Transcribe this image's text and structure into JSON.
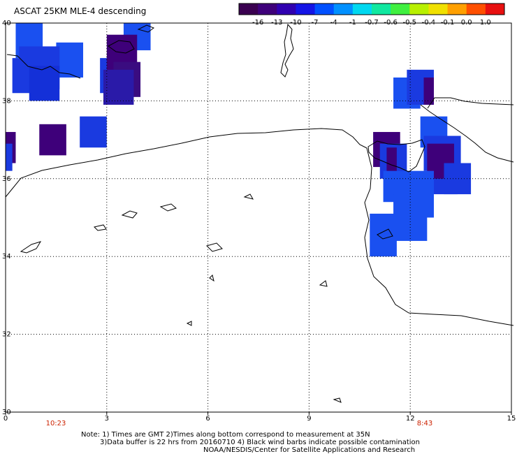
{
  "title": "ASCAT 25KM MLE-4 descending",
  "colorbar": {
    "labels": [
      "-16",
      "-13",
      "-10",
      "-7",
      "-4",
      "-1",
      "-0.7",
      "-0.6",
      "-0.5",
      "-0.4",
      "-0.1",
      "0.0",
      "1.0"
    ],
    "colors": [
      "#3a0050",
      "#3e007a",
      "#3000b0",
      "#1414e6",
      "#0050ff",
      "#0090ff",
      "#00d8f0",
      "#10e8a0",
      "#40f040",
      "#b8f000",
      "#f0e000",
      "#ffa000",
      "#ff5000",
      "#e81010"
    ]
  },
  "axes": {
    "lon_ticks": [
      "0",
      "3",
      "6",
      "9",
      "12",
      "15"
    ],
    "lat_ticks": [
      "40",
      "38",
      "36",
      "34",
      "32",
      "30"
    ],
    "lon_range": [
      0,
      15
    ],
    "lat_range": [
      30,
      40
    ]
  },
  "times": [
    {
      "label": "10:23",
      "color": "#cc2200"
    },
    {
      "label": "8:43",
      "color": "#cc2200"
    }
  ],
  "notes": [
    "Note: 1) Times are GMT 2)Times along bottom correspond to measurement at 35N",
    "3)Data buffer is 22 hrs from 20160710 4) Black wind barbs indicate possible contamination",
    "NOAA/NESDIS/Center for Satellite Applications and Research"
  ],
  "data_cells": [
    {
      "lon1": 0.3,
      "lat1": 39.1,
      "lon2": 1.1,
      "lat2": 40.0,
      "color": "#1a50f0"
    },
    {
      "lon1": 1.5,
      "lat1": 38.6,
      "lon2": 2.3,
      "lat2": 39.5,
      "color": "#1a50f0"
    },
    {
      "lon1": 0.4,
      "lat1": 38.3,
      "lon2": 1.6,
      "lat2": 39.4,
      "color": "#1a3ae0"
    },
    {
      "lon1": 0.2,
      "lat1": 38.2,
      "lon2": 1.3,
      "lat2": 39.1,
      "color": "#1a3ae0"
    },
    {
      "lon1": 0.7,
      "lat1": 38.0,
      "lon2": 1.6,
      "lat2": 38.9,
      "color": "#1430d8"
    },
    {
      "lon1": 3.5,
      "lat1": 39.3,
      "lon2": 4.3,
      "lat2": 40.0,
      "color": "#1a50f0"
    },
    {
      "lon1": 2.8,
      "lat1": 38.2,
      "lon2": 3.7,
      "lat2": 39.1,
      "color": "#1a3ae0"
    },
    {
      "lon1": 3.0,
      "lat1": 38.6,
      "lon2": 3.9,
      "lat2": 39.7,
      "color": "#3e007a"
    },
    {
      "lon1": 3.2,
      "lat1": 38.1,
      "lon2": 4.0,
      "lat2": 39.0,
      "color": "#3a0c80"
    },
    {
      "lon1": 2.9,
      "lat1": 37.9,
      "lon2": 3.8,
      "lat2": 38.8,
      "color": "#2a1aa8"
    },
    {
      "lon1": 0.0,
      "lat1": 36.4,
      "lon2": 0.3,
      "lat2": 37.2,
      "color": "#3e007a"
    },
    {
      "lon1": 0.0,
      "lat1": 36.2,
      "lon2": 0.2,
      "lat2": 36.9,
      "color": "#1a3ae0"
    },
    {
      "lon1": 1.0,
      "lat1": 36.6,
      "lon2": 1.8,
      "lat2": 37.4,
      "color": "#3e007a"
    },
    {
      "lon1": 2.2,
      "lat1": 36.8,
      "lon2": 3.0,
      "lat2": 37.6,
      "color": "#1a3ae0"
    },
    {
      "lon1": 11.5,
      "lat1": 37.8,
      "lon2": 12.3,
      "lat2": 38.6,
      "color": "#1a50f0"
    },
    {
      "lon1": 11.9,
      "lat1": 37.9,
      "lon2": 12.7,
      "lat2": 38.8,
      "color": "#1a3ae0"
    },
    {
      "lon1": 12.4,
      "lat1": 37.9,
      "lon2": 12.7,
      "lat2": 38.6,
      "color": "#3e007a"
    },
    {
      "lon1": 12.3,
      "lat1": 36.8,
      "lon2": 13.1,
      "lat2": 37.6,
      "color": "#1a50f0"
    },
    {
      "lon1": 12.4,
      "lat1": 36.2,
      "lon2": 13.5,
      "lat2": 37.1,
      "color": "#1a3ae0"
    },
    {
      "lon1": 12.6,
      "lat1": 35.6,
      "lon2": 13.4,
      "lat2": 36.6,
      "color": "#1a3ae0"
    },
    {
      "lon1": 12.5,
      "lat1": 36.0,
      "lon2": 13.3,
      "lat2": 36.9,
      "color": "#3e007a"
    },
    {
      "lon1": 13.0,
      "lat1": 35.6,
      "lon2": 13.8,
      "lat2": 36.4,
      "color": "#1a3ae0"
    },
    {
      "lon1": 10.9,
      "lat1": 36.3,
      "lon2": 11.7,
      "lat2": 37.2,
      "color": "#3e007a"
    },
    {
      "lon1": 11.1,
      "lat1": 36.0,
      "lon2": 11.9,
      "lat2": 36.9,
      "color": "#1a3ae0"
    },
    {
      "lon1": 11.3,
      "lat1": 36.0,
      "lon2": 11.6,
      "lat2": 36.8,
      "color": "#3e007a"
    },
    {
      "lon1": 11.2,
      "lat1": 35.4,
      "lon2": 12.0,
      "lat2": 36.2,
      "color": "#1a50f0"
    },
    {
      "lon1": 11.8,
      "lat1": 35.0,
      "lon2": 12.7,
      "lat2": 36.2,
      "color": "#1a50f0"
    },
    {
      "lon1": 11.5,
      "lat1": 34.4,
      "lon2": 12.5,
      "lat2": 35.6,
      "color": "#1a50f0"
    },
    {
      "lon1": 10.8,
      "lat1": 34.0,
      "lon2": 11.6,
      "lat2": 35.1,
      "color": "#1a50f0"
    }
  ]
}
